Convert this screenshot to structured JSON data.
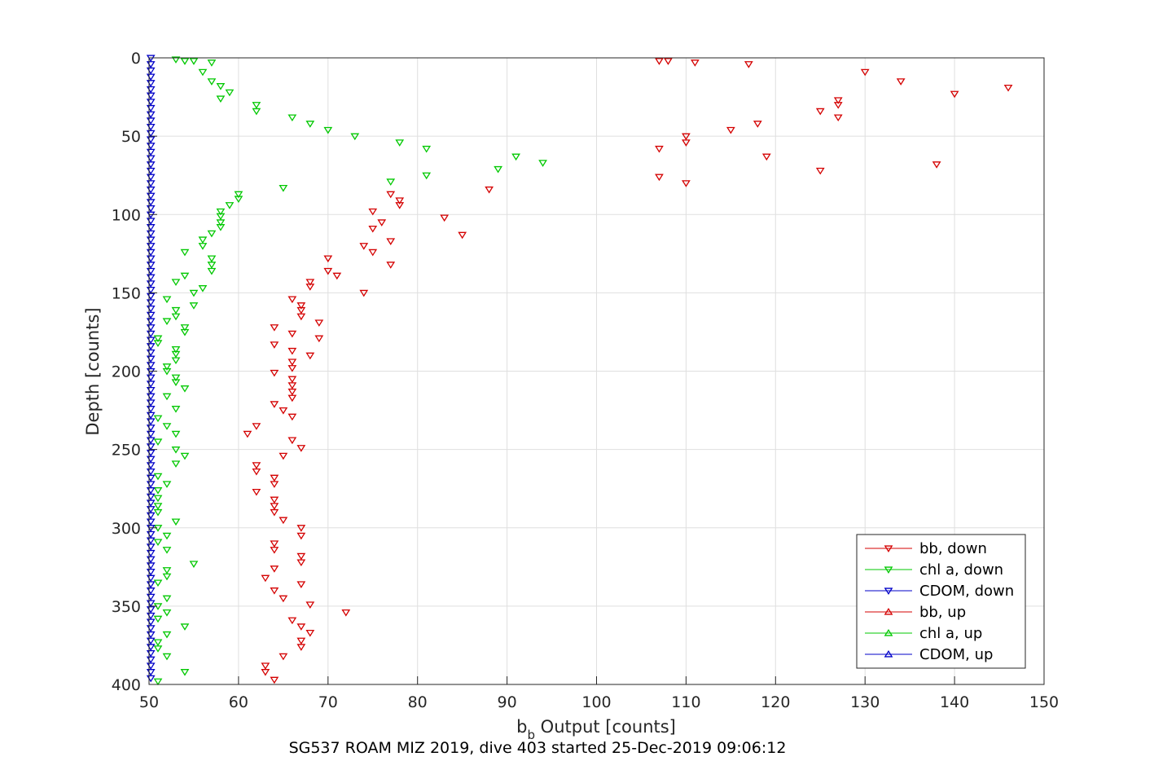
{
  "chart_data": {
    "type": "scatter",
    "title": "SG537 ROAM MIZ 2019, dive 403 started 25-Dec-2019 09:06:12",
    "xlabel_main": "b",
    "xlabel_sub": "b",
    "xlabel_rest": " Output [counts]",
    "ylabel": "Depth [counts]",
    "xlim": [
      50,
      150
    ],
    "ylim": [
      0,
      400
    ],
    "y_reversed": true,
    "grid": true,
    "legend_position": "bottom-right",
    "xticks": [
      "50",
      "60",
      "70",
      "80",
      "90",
      "100",
      "110",
      "120",
      "130",
      "140",
      "150"
    ],
    "yticks": [
      "0",
      "50",
      "100",
      "150",
      "200",
      "250",
      "300",
      "350",
      "400"
    ],
    "series": [
      {
        "name": "bb, down",
        "color": "#d40000",
        "marker": "triangle-down",
        "points": [
          [
            107,
            2
          ],
          [
            108,
            2
          ],
          [
            111,
            3
          ],
          [
            117,
            4
          ],
          [
            130,
            9
          ],
          [
            134,
            15
          ],
          [
            146,
            19
          ],
          [
            140,
            23
          ],
          [
            127,
            27
          ],
          [
            127,
            30
          ],
          [
            125,
            34
          ],
          [
            127,
            38
          ],
          [
            118,
            42
          ],
          [
            115,
            46
          ],
          [
            110,
            50
          ],
          [
            110,
            54
          ],
          [
            107,
            58
          ],
          [
            119,
            63
          ],
          [
            138,
            68
          ],
          [
            125,
            72
          ],
          [
            107,
            76
          ],
          [
            110,
            80
          ],
          [
            88,
            84
          ],
          [
            77,
            87
          ],
          [
            78,
            91
          ],
          [
            78,
            94
          ],
          [
            75,
            98
          ],
          [
            83,
            102
          ],
          [
            76,
            105
          ],
          [
            75,
            109
          ],
          [
            85,
            113
          ],
          [
            77,
            117
          ],
          [
            74,
            120
          ],
          [
            75,
            124
          ],
          [
            70,
            128
          ],
          [
            77,
            132
          ],
          [
            70,
            136
          ],
          [
            71,
            139
          ],
          [
            68,
            143
          ],
          [
            68,
            146
          ],
          [
            74,
            150
          ],
          [
            66,
            154
          ],
          [
            67,
            158
          ],
          [
            67,
            161
          ],
          [
            67,
            165
          ],
          [
            69,
            169
          ],
          [
            64,
            172
          ],
          [
            66,
            176
          ],
          [
            69,
            179
          ],
          [
            64,
            183
          ],
          [
            66,
            187
          ],
          [
            68,
            190
          ],
          [
            66,
            194
          ],
          [
            66,
            198
          ],
          [
            64,
            201
          ],
          [
            66,
            205
          ],
          [
            66,
            209
          ],
          [
            66,
            213
          ],
          [
            66,
            217
          ],
          [
            64,
            221
          ],
          [
            65,
            225
          ],
          [
            66,
            229
          ],
          [
            62,
            235
          ],
          [
            61,
            240
          ],
          [
            66,
            244
          ],
          [
            67,
            249
          ],
          [
            65,
            254
          ],
          [
            62,
            260
          ],
          [
            62,
            264
          ],
          [
            64,
            268
          ],
          [
            64,
            272
          ],
          [
            62,
            277
          ],
          [
            64,
            282
          ],
          [
            64,
            286
          ],
          [
            64,
            290
          ],
          [
            65,
            295
          ],
          [
            67,
            300
          ],
          [
            67,
            305
          ],
          [
            64,
            310
          ],
          [
            64,
            314
          ],
          [
            67,
            318
          ],
          [
            67,
            322
          ],
          [
            64,
            326
          ],
          [
            63,
            332
          ],
          [
            67,
            336
          ],
          [
            64,
            340
          ],
          [
            65,
            345
          ],
          [
            68,
            349
          ],
          [
            72,
            354
          ],
          [
            66,
            359
          ],
          [
            67,
            363
          ],
          [
            68,
            367
          ],
          [
            67,
            372
          ],
          [
            67,
            376
          ],
          [
            65,
            382
          ],
          [
            63,
            388
          ],
          [
            63,
            392
          ],
          [
            64,
            397
          ]
        ]
      },
      {
        "name": "chl a, down",
        "color": "#00c800",
        "marker": "triangle-down",
        "points": [
          [
            53,
            1
          ],
          [
            54,
            2
          ],
          [
            55,
            2
          ],
          [
            57,
            3
          ],
          [
            56,
            9
          ],
          [
            57,
            15
          ],
          [
            58,
            18
          ],
          [
            59,
            22
          ],
          [
            58,
            26
          ],
          [
            62,
            30
          ],
          [
            62,
            34
          ],
          [
            66,
            38
          ],
          [
            68,
            42
          ],
          [
            70,
            46
          ],
          [
            73,
            50
          ],
          [
            78,
            54
          ],
          [
            81,
            58
          ],
          [
            91,
            63
          ],
          [
            94,
            67
          ],
          [
            89,
            71
          ],
          [
            81,
            75
          ],
          [
            77,
            79
          ],
          [
            65,
            83
          ],
          [
            60,
            87
          ],
          [
            60,
            90
          ],
          [
            59,
            94
          ],
          [
            58,
            98
          ],
          [
            58,
            101
          ],
          [
            58,
            105
          ],
          [
            58,
            108
          ],
          [
            57,
            112
          ],
          [
            56,
            116
          ],
          [
            56,
            120
          ],
          [
            54,
            124
          ],
          [
            57,
            128
          ],
          [
            57,
            132
          ],
          [
            57,
            136
          ],
          [
            54,
            139
          ],
          [
            53,
            143
          ],
          [
            56,
            147
          ],
          [
            55,
            150
          ],
          [
            52,
            154
          ],
          [
            55,
            158
          ],
          [
            53,
            161
          ],
          [
            53,
            165
          ],
          [
            52,
            168
          ],
          [
            54,
            172
          ],
          [
            54,
            175
          ],
          [
            51,
            179
          ],
          [
            51,
            182
          ],
          [
            53,
            186
          ],
          [
            53,
            189
          ],
          [
            53,
            193
          ],
          [
            52,
            197
          ],
          [
            52,
            200
          ],
          [
            53,
            204
          ],
          [
            53,
            207
          ],
          [
            54,
            211
          ],
          [
            52,
            216
          ],
          [
            53,
            224
          ],
          [
            51,
            230
          ],
          [
            52,
            235
          ],
          [
            53,
            240
          ],
          [
            51,
            245
          ],
          [
            53,
            250
          ],
          [
            54,
            254
          ],
          [
            53,
            259
          ],
          [
            51,
            267
          ],
          [
            52,
            272
          ],
          [
            51,
            276
          ],
          [
            51,
            281
          ],
          [
            51,
            286
          ],
          [
            51,
            290
          ],
          [
            53,
            296
          ],
          [
            51,
            300
          ],
          [
            52,
            305
          ],
          [
            51,
            309
          ],
          [
            52,
            314
          ],
          [
            55,
            323
          ],
          [
            52,
            327
          ],
          [
            52,
            331
          ],
          [
            51,
            335
          ],
          [
            52,
            345
          ],
          [
            51,
            350
          ],
          [
            52,
            354
          ],
          [
            51,
            358
          ],
          [
            54,
            363
          ],
          [
            52,
            368
          ],
          [
            51,
            373
          ],
          [
            51,
            377
          ],
          [
            52,
            382
          ],
          [
            54,
            392
          ],
          [
            51,
            398
          ]
        ]
      },
      {
        "name": "CDOM, down",
        "color": "#0000c8",
        "marker": "triangle-down",
        "points": [
          [
            50.2,
            0
          ],
          [
            50.2,
            4
          ],
          [
            50.2,
            8
          ],
          [
            50.2,
            12
          ],
          [
            50.2,
            16
          ],
          [
            50.2,
            20
          ],
          [
            50.2,
            24
          ],
          [
            50.2,
            28
          ],
          [
            50.2,
            32
          ],
          [
            50.2,
            36
          ],
          [
            50.2,
            40
          ],
          [
            50.2,
            44
          ],
          [
            50.2,
            48
          ],
          [
            50.2,
            52
          ],
          [
            50.2,
            56
          ],
          [
            50.2,
            60
          ],
          [
            50.2,
            64
          ],
          [
            50.2,
            68
          ],
          [
            50.2,
            72
          ],
          [
            50.2,
            76
          ],
          [
            50.2,
            80
          ],
          [
            50.2,
            84
          ],
          [
            50.2,
            88
          ],
          [
            50.2,
            92
          ],
          [
            50.2,
            96
          ],
          [
            50.2,
            100
          ],
          [
            50.2,
            104
          ],
          [
            50.2,
            108
          ],
          [
            50.2,
            112
          ],
          [
            50.2,
            116
          ],
          [
            50.2,
            120
          ],
          [
            50.2,
            124
          ],
          [
            50.2,
            128
          ],
          [
            50.2,
            132
          ],
          [
            50.2,
            136
          ],
          [
            50.2,
            140
          ],
          [
            50.2,
            144
          ],
          [
            50.2,
            148
          ],
          [
            50.2,
            152
          ],
          [
            50.2,
            156
          ],
          [
            50.2,
            160
          ],
          [
            50.2,
            164
          ],
          [
            50.2,
            168
          ],
          [
            50.2,
            172
          ],
          [
            50.2,
            176
          ],
          [
            50.2,
            180
          ],
          [
            50.2,
            184
          ],
          [
            50.2,
            188
          ],
          [
            50.2,
            192
          ],
          [
            50.2,
            196
          ],
          [
            50.2,
            200
          ],
          [
            50.2,
            204
          ],
          [
            50.2,
            208
          ],
          [
            50.2,
            212
          ],
          [
            50.2,
            216
          ],
          [
            50.2,
            220
          ],
          [
            50.2,
            224
          ],
          [
            50.2,
            228
          ],
          [
            50.2,
            232
          ],
          [
            50.2,
            236
          ],
          [
            50.2,
            240
          ],
          [
            50.2,
            244
          ],
          [
            50.2,
            248
          ],
          [
            50.2,
            252
          ],
          [
            50.2,
            256
          ],
          [
            50.2,
            260
          ],
          [
            50.2,
            264
          ],
          [
            50.2,
            268
          ],
          [
            50.2,
            272
          ],
          [
            50.2,
            276
          ],
          [
            50.2,
            280
          ],
          [
            50.2,
            284
          ],
          [
            50.2,
            288
          ],
          [
            50.2,
            292
          ],
          [
            50.2,
            296
          ],
          [
            50.2,
            300
          ],
          [
            50.2,
            304
          ],
          [
            50.2,
            308
          ],
          [
            50.2,
            312
          ],
          [
            50.2,
            316
          ],
          [
            50.2,
            320
          ],
          [
            50.2,
            324
          ],
          [
            50.2,
            328
          ],
          [
            50.2,
            332
          ],
          [
            50.2,
            336
          ],
          [
            50.2,
            340
          ],
          [
            50.2,
            344
          ],
          [
            50.2,
            348
          ],
          [
            50.2,
            352
          ],
          [
            50.2,
            356
          ],
          [
            50.2,
            360
          ],
          [
            50.2,
            364
          ],
          [
            50.2,
            368
          ],
          [
            50.2,
            372
          ],
          [
            50.2,
            376
          ],
          [
            50.2,
            380
          ],
          [
            50.2,
            384
          ],
          [
            50.2,
            388
          ],
          [
            50.2,
            392
          ],
          [
            50.2,
            396
          ]
        ]
      },
      {
        "name": "bb, up",
        "color": "#d40000",
        "marker": "triangle-up",
        "points": []
      },
      {
        "name": "chl a, up",
        "color": "#00c800",
        "marker": "triangle-up",
        "points": []
      },
      {
        "name": "CDOM, up",
        "color": "#0000c8",
        "marker": "triangle-up",
        "points": []
      }
    ]
  }
}
